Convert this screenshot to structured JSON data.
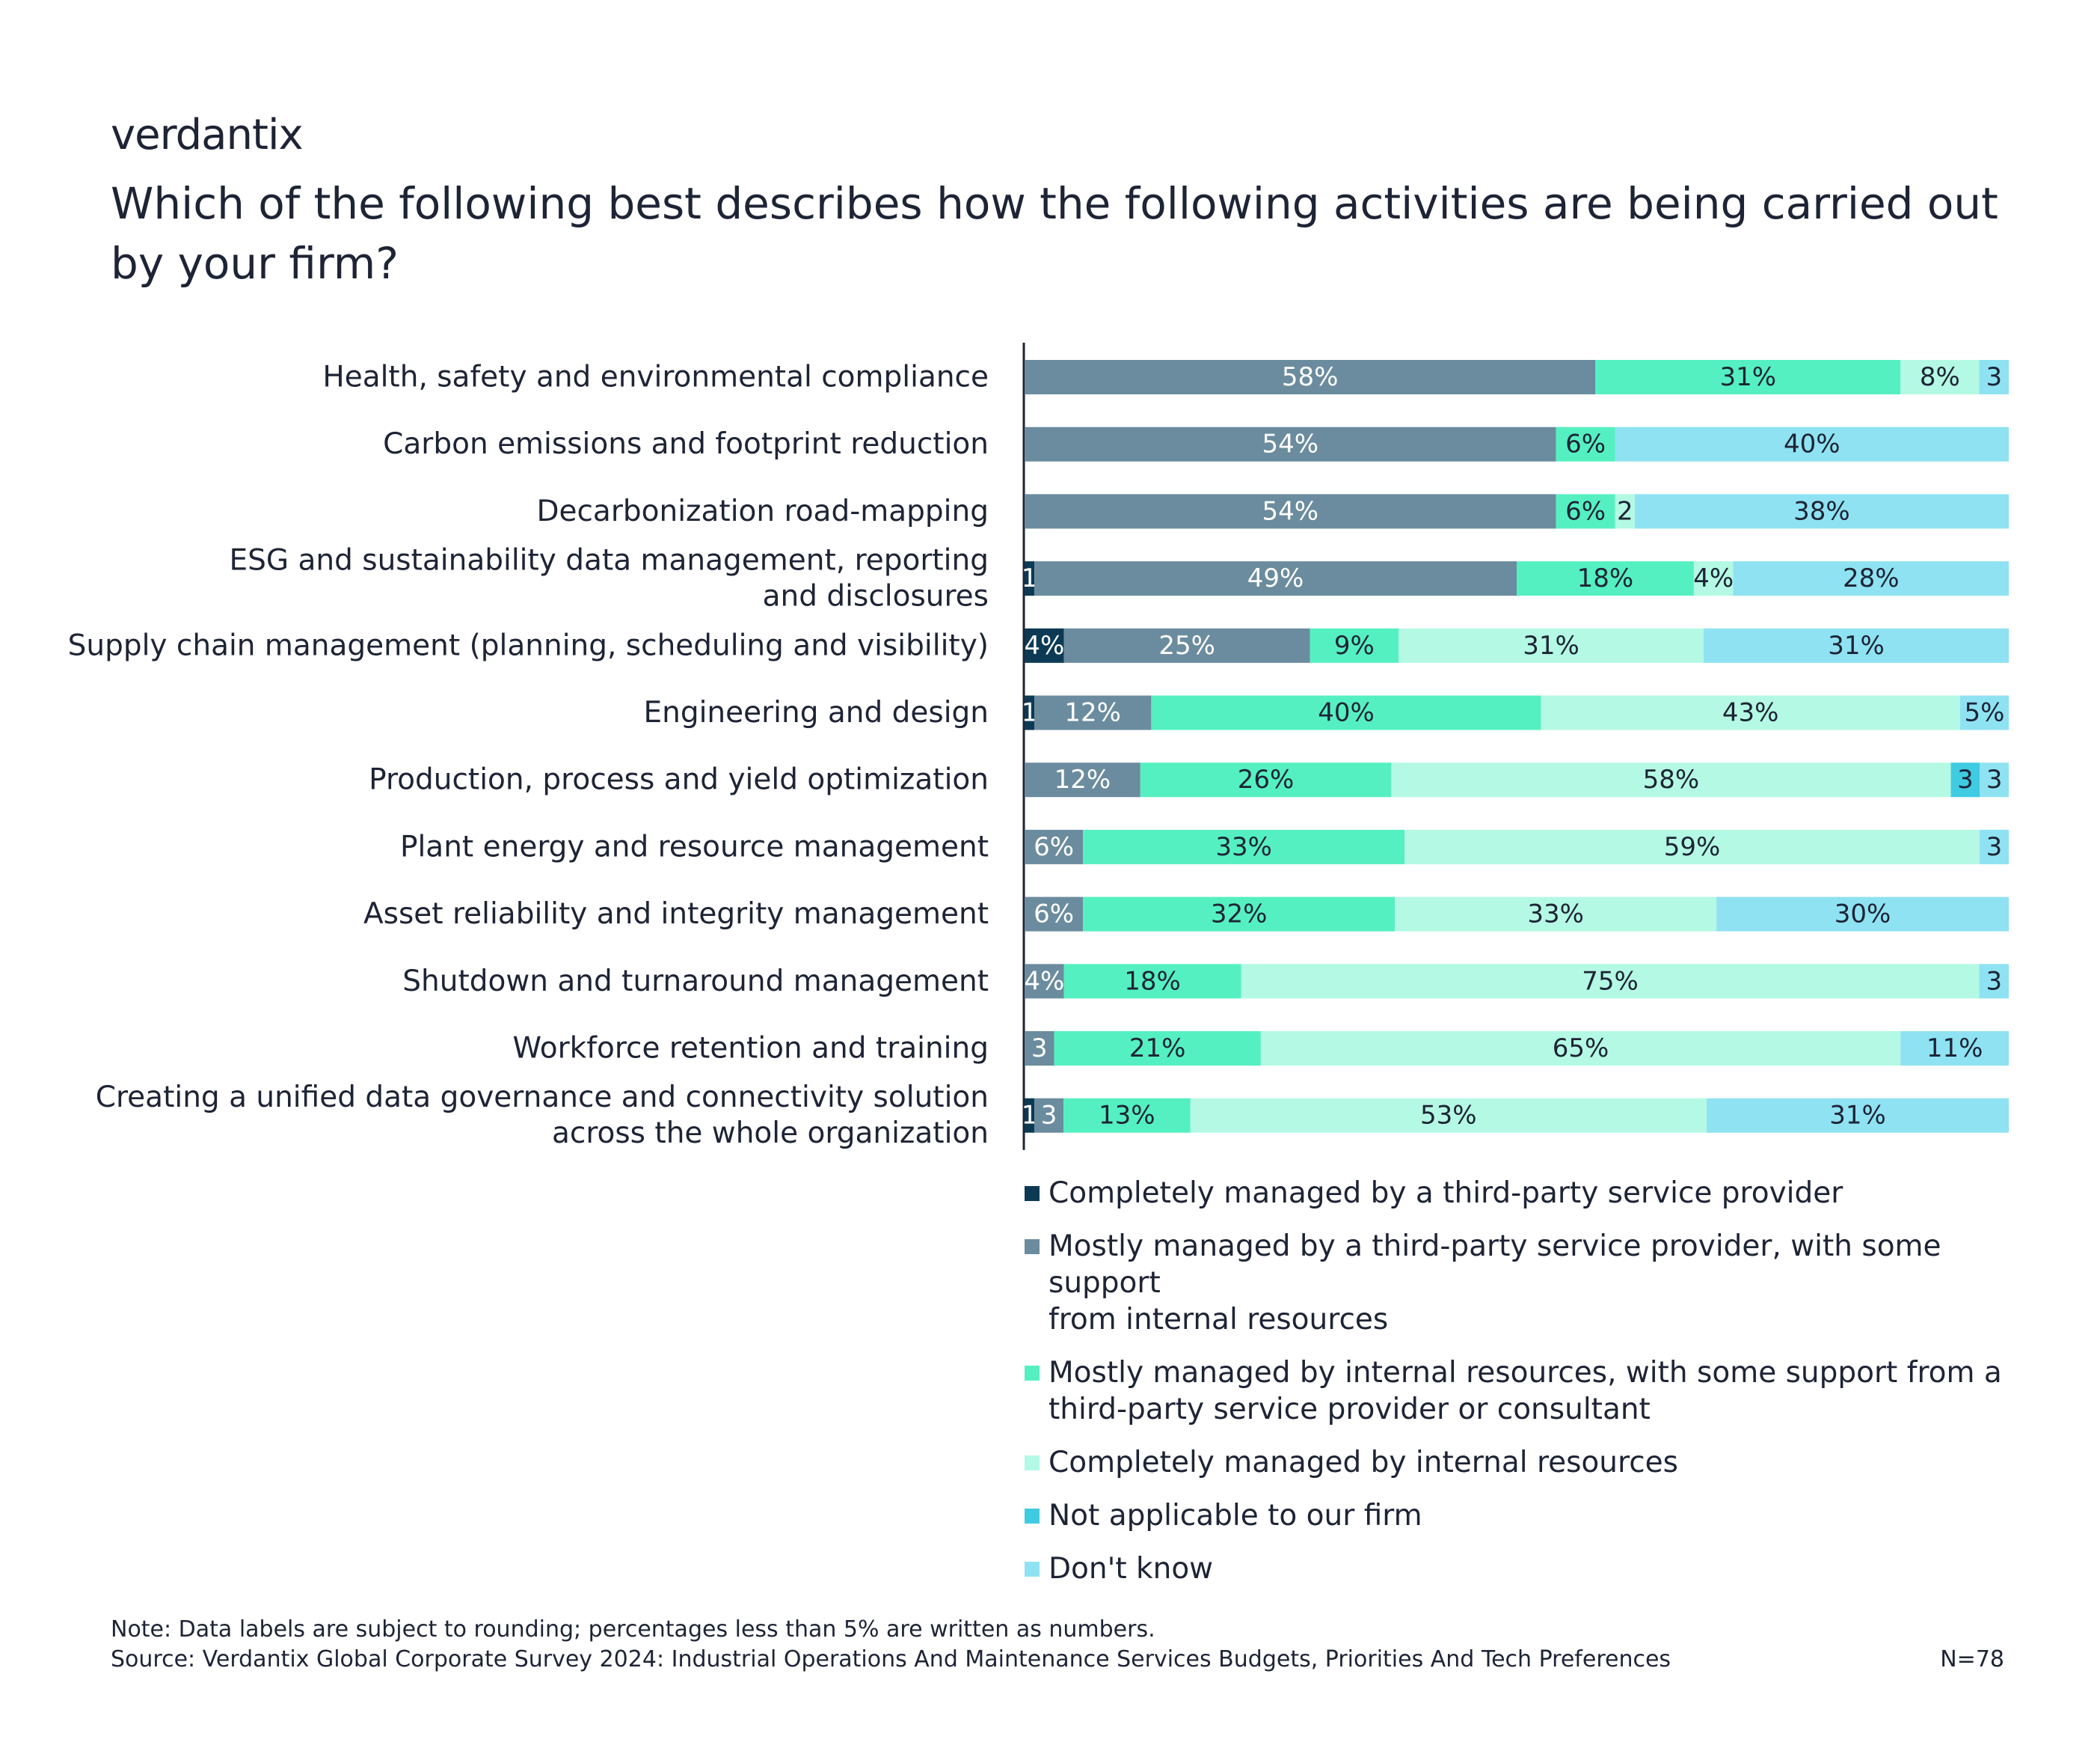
{
  "brand": {
    "name": "verdantix"
  },
  "chart_data": {
    "type": "bar",
    "orientation": "horizontal",
    "stacked": true,
    "title": "Which of the following best describes how the following activities are being carried out by your firm?",
    "categories": [
      "Health, safety and environmental compliance",
      "Carbon emissions and footprint reduction",
      "Decarbonization road-mapping",
      "ESG and sustainability data management, reporting and disclosures",
      "Supply chain management (planning, scheduling and visibility)",
      "Engineering and design",
      "Production, process and yield optimization",
      "Plant energy and resource management",
      "Asset reliability and integrity management",
      "Shutdown and turnaround management",
      "Workforce retention and training",
      "Creating a unified data governance and connectivity solution across the whole organization"
    ],
    "category_lines": [
      [
        "Health, safety and environmental compliance"
      ],
      [
        "Carbon emissions and footprint reduction"
      ],
      [
        "Decarbonization road-mapping"
      ],
      [
        "ESG and sustainability data management, reporting",
        "and disclosures"
      ],
      [
        "Supply chain management (planning, scheduling and visibility)"
      ],
      [
        "Engineering and design"
      ],
      [
        "Production, process and yield optimization"
      ],
      [
        "Plant energy and resource management"
      ],
      [
        "Asset reliability and integrity management"
      ],
      [
        "Shutdown and turnaround management"
      ],
      [
        "Workforce retention and training"
      ],
      [
        "Creating a unified data governance and connectivity solution",
        "across the whole organization"
      ]
    ],
    "series": [
      {
        "name": "Completely managed by a third-party service provider",
        "name_lines": [
          "Completely managed by a third-party service provider"
        ],
        "color": "#0c3a55",
        "label_color": "#ffffff",
        "values": [
          0,
          0,
          0,
          1,
          4,
          1,
          0,
          0,
          0,
          0,
          0,
          1
        ],
        "labels": [
          "",
          "",
          "",
          "1",
          "4%",
          "1",
          "",
          "",
          "",
          "",
          "",
          "1"
        ]
      },
      {
        "name": "Mostly managed by a third-party service provider, with some support from internal resources",
        "name_lines": [
          "Mostly managed by a third-party service provider, with some support",
          "from internal resources"
        ],
        "color": "#6b8c9e",
        "label_color": "#ffffff",
        "values": [
          58,
          54,
          54,
          49,
          25,
          12,
          12,
          6,
          6,
          4,
          3,
          3
        ],
        "labels": [
          "58%",
          "54%",
          "54%",
          "49%",
          "25%",
          "12%",
          "12%",
          "6%",
          "6%",
          "4%",
          "3",
          "3"
        ]
      },
      {
        "name": "Mostly managed by internal resources, with some support from a third-party service provider or consultant",
        "name_lines": [
          "Mostly managed by internal resources, with some support from a",
          "third-party service provider or consultant"
        ],
        "color": "#55f0c1",
        "label_color": "#1d2435",
        "values": [
          31,
          6,
          6,
          18,
          9,
          40,
          26,
          33,
          32,
          18,
          21,
          13
        ],
        "labels": [
          "31%",
          "6%",
          "6%",
          "18%",
          "9%",
          "40%",
          "26%",
          "33%",
          "32%",
          "18%",
          "21%",
          "13%"
        ]
      },
      {
        "name": "Completely managed by internal resources",
        "name_lines": [
          "Completely managed by internal resources"
        ],
        "color": "#b4f9e3",
        "label_color": "#1d2435",
        "values": [
          8,
          0,
          2,
          4,
          31,
          43,
          58,
          59,
          33,
          75,
          65,
          53
        ],
        "labels": [
          "8%",
          "",
          "2",
          "4%",
          "31%",
          "43%",
          "58%",
          "59%",
          "33%",
          "75%",
          "65%",
          "53%"
        ]
      },
      {
        "name": "Not applicable to our firm",
        "name_lines": [
          "Not applicable to our firm"
        ],
        "color": "#3fcbe2",
        "label_color": "#1d2435",
        "values": [
          0,
          0,
          0,
          0,
          0,
          0,
          3,
          0,
          0,
          0,
          0,
          0
        ],
        "labels": [
          "",
          "",
          "",
          "",
          "",
          "",
          "3",
          "",
          "",
          "",
          "",
          ""
        ]
      },
      {
        "name": "Don't know",
        "name_lines": [
          "Don't know"
        ],
        "color": "#8fe2f2",
        "label_color": "#1d2435",
        "values": [
          3,
          40,
          38,
          28,
          31,
          5,
          3,
          3,
          30,
          3,
          11,
          31
        ],
        "labels": [
          "3",
          "40%",
          "38%",
          "28%",
          "31%",
          "5%",
          "3",
          "3",
          "30%",
          "3",
          "11%",
          "31%"
        ]
      }
    ],
    "xlim": [
      0,
      100
    ],
    "legend_position": "bottom"
  },
  "footer": {
    "note": "Note: Data labels are subject to rounding; percentages less than 5% are written as numbers.",
    "source": "Source: Verdantix Global Corporate Survey 2024: Industrial Operations And Maintenance Services Budgets, Priorities And Tech Preferences",
    "sample": "N=78"
  }
}
